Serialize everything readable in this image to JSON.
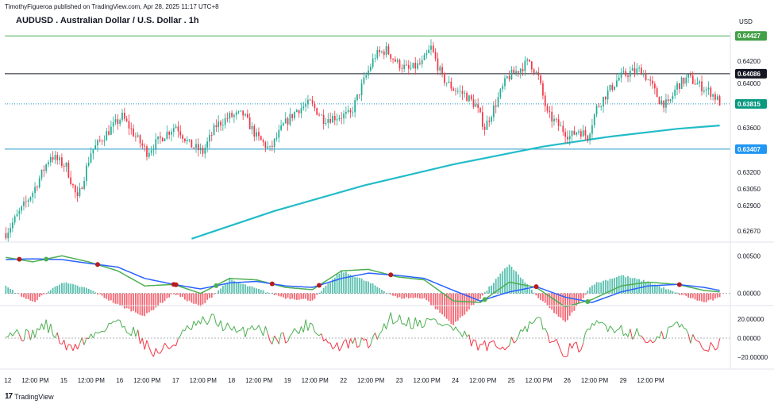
{
  "header": {
    "publish_line": "TimothyFigueroa published on TradingView.com, Apr 28, 2025 11:17 UTC+8",
    "title": "AUDUSD . Australian Dollar / U.S. Dollar . 1h",
    "currency": "USD"
  },
  "footer": {
    "brand": "TradingView",
    "logo_icon": "tradingview-logo-icon"
  },
  "colors": {
    "up": "#22ab94",
    "down": "#f23645",
    "ma": "#22bcc8",
    "line_green": "#4caf50",
    "line_black": "#131722",
    "line_cyan": "#2196c8",
    "badge_green": "#43a047",
    "badge_black": "#131722",
    "badge_teal": "#089981",
    "badge_blue": "#2196f3",
    "macd_green": "#4caf50",
    "macd_red": "#b71c1c",
    "macd_blue": "#2962ff",
    "osc_up": "#4caf50",
    "osc_down": "#f23645"
  },
  "chart_data": [
    {
      "type": "candlestick",
      "title": "AUDUSD . Australian Dollar / U.S. Dollar . 1h",
      "ylim": [
        0.6262,
        0.6445
      ],
      "yticks": [
        "0.64200",
        "0.64000",
        "0.63600",
        "0.63200",
        "0.63050",
        "0.62900",
        "0.62670"
      ],
      "price_lines": [
        {
          "value": 0.64427,
          "label": "0.64427",
          "color": "line_green",
          "badge": "badge_green"
        },
        {
          "value": 0.64086,
          "label": "0.64086",
          "color": "line_black",
          "badge": "badge_black"
        },
        {
          "value": 0.63815,
          "label": "0.63815",
          "color": "line_cyan",
          "badge": "badge_teal",
          "dotted": true
        },
        {
          "value": 0.63407,
          "label": "0.63407",
          "color": "line_cyan",
          "badge": "badge_blue"
        }
      ],
      "close_path": [
        [
          0,
          0.6265
        ],
        [
          12,
          0.6302
        ],
        [
          20,
          0.6335
        ],
        [
          27,
          0.6325
        ],
        [
          32,
          0.6295
        ],
        [
          38,
          0.6338
        ],
        [
          45,
          0.6355
        ],
        [
          52,
          0.637
        ],
        [
          58,
          0.6352
        ],
        [
          63,
          0.6338
        ],
        [
          70,
          0.6352
        ],
        [
          76,
          0.6362
        ],
        [
          82,
          0.6345
        ],
        [
          88,
          0.6338
        ],
        [
          94,
          0.6362
        ],
        [
          100,
          0.637
        ],
        [
          106,
          0.6372
        ],
        [
          112,
          0.6352
        ],
        [
          118,
          0.634
        ],
        [
          124,
          0.6362
        ],
        [
          130,
          0.6376
        ],
        [
          136,
          0.6382
        ],
        [
          142,
          0.6368
        ],
        [
          148,
          0.637
        ],
        [
          154,
          0.6372
        ],
        [
          160,
          0.6402
        ],
        [
          165,
          0.6425
        ],
        [
          170,
          0.643
        ],
        [
          175,
          0.6418
        ],
        [
          180,
          0.6412
        ],
        [
          186,
          0.6418
        ],
        [
          190,
          0.6432
        ],
        [
          195,
          0.6405
        ],
        [
          200,
          0.6395
        ],
        [
          205,
          0.639
        ],
        [
          210,
          0.638
        ],
        [
          214,
          0.636
        ],
        [
          219,
          0.6382
        ],
        [
          224,
          0.6405
        ],
        [
          229,
          0.6412
        ],
        [
          234,
          0.642
        ],
        [
          238,
          0.6405
        ],
        [
          242,
          0.6372
        ],
        [
          247,
          0.6362
        ],
        [
          252,
          0.6352
        ],
        [
          256,
          0.6358
        ],
        [
          260,
          0.6352
        ],
        [
          264,
          0.6378
        ],
        [
          269,
          0.6392
        ],
        [
          274,
          0.6405
        ],
        [
          279,
          0.641
        ],
        [
          284,
          0.6412
        ],
        [
          288,
          0.64
        ],
        [
          292,
          0.6385
        ],
        [
          296,
          0.638
        ],
        [
          300,
          0.6398
        ],
        [
          305,
          0.6405
        ],
        [
          310,
          0.6398
        ],
        [
          315,
          0.6392
        ],
        [
          319,
          0.6383
        ]
      ],
      "candle_count": 320,
      "moving_average": [
        [
          83,
          0.626
        ],
        [
          120,
          0.6285
        ],
        [
          160,
          0.6308
        ],
        [
          200,
          0.6327
        ],
        [
          240,
          0.6343
        ],
        [
          270,
          0.6352
        ],
        [
          300,
          0.6359
        ],
        [
          319,
          0.6362
        ]
      ]
    },
    {
      "type": "line",
      "name_hint": "macd",
      "ylim": [
        -0.0013,
        0.0063
      ],
      "yticks": [
        "0.00500",
        "0.00000"
      ],
      "x": [
        0,
        12,
        25,
        37,
        50,
        62,
        75,
        87,
        100,
        112,
        125,
        137,
        150,
        162,
        175,
        187,
        200,
        212,
        225,
        237,
        250,
        262,
        275,
        287,
        300,
        312,
        319
      ],
      "series": [
        {
          "color": "macd_green",
          "values": [
            0.0048,
            0.0042,
            0.005,
            0.0042,
            0.003,
            0.001,
            0.0012,
            0.0,
            0.002,
            0.0018,
            0.0008,
            0.0005,
            0.003,
            0.0032,
            0.0022,
            0.0018,
            -0.001,
            -0.0012,
            0.0015,
            0.0008,
            -0.0018,
            -0.0008,
            0.001,
            0.0015,
            0.0012,
            0.0004,
            0.0002
          ]
        },
        {
          "color": "macd_blue",
          "values": [
            0.0045,
            0.0046,
            0.0045,
            0.004,
            0.0035,
            0.002,
            0.0012,
            0.0006,
            0.0014,
            0.0016,
            0.001,
            0.0008,
            0.002,
            0.0027,
            0.0024,
            0.002,
            0.0004,
            -0.001,
            0.0002,
            0.0009,
            -0.0005,
            -0.0012,
            0.0002,
            0.001,
            0.0012,
            0.0008,
            0.0004
          ]
        }
      ],
      "histogram_scale": 0.0009
    },
    {
      "type": "line",
      "ylim": [
        -30,
        30
      ],
      "yticks": [
        "20.00000",
        "0.00000",
        "−20.00000"
      ],
      "x_count": 320,
      "bands": [
        [
          0,
          8
        ],
        [
          10,
          2
        ],
        [
          18,
          14
        ],
        [
          28,
          -12
        ],
        [
          40,
          4
        ],
        [
          48,
          18
        ],
        [
          58,
          6
        ],
        [
          66,
          -16
        ],
        [
          74,
          -8
        ],
        [
          82,
          10
        ],
        [
          92,
          20
        ],
        [
          104,
          4
        ],
        [
          112,
          14
        ],
        [
          120,
          -2
        ],
        [
          128,
          4
        ],
        [
          136,
          16
        ],
        [
          146,
          -10
        ],
        [
          154,
          -6
        ],
        [
          164,
          -4
        ],
        [
          172,
          22
        ],
        [
          182,
          16
        ],
        [
          192,
          18
        ],
        [
          200,
          10
        ],
        [
          210,
          -8
        ],
        [
          220,
          -10
        ],
        [
          230,
          4
        ],
        [
          238,
          18
        ],
        [
          248,
          -14
        ],
        [
          256,
          -10
        ],
        [
          264,
          16
        ],
        [
          274,
          10
        ],
        [
          282,
          4
        ],
        [
          290,
          -6
        ],
        [
          300,
          16
        ],
        [
          308,
          -4
        ],
        [
          314,
          -10
        ],
        [
          319,
          -3
        ]
      ]
    }
  ],
  "x_axis": {
    "labels": [
      {
        "text": "12",
        "x": 0
      },
      {
        "text": "12:00 PM",
        "x": 12
      },
      {
        "text": "15",
        "x": 25
      },
      {
        "text": "12:00 PM",
        "x": 37
      },
      {
        "text": "16",
        "x": 50
      },
      {
        "text": "12:00 PM",
        "x": 62
      },
      {
        "text": "17",
        "x": 75
      },
      {
        "text": "12:00 PM",
        "x": 87
      },
      {
        "text": "18",
        "x": 100
      },
      {
        "text": "12:00 PM",
        "x": 112
      },
      {
        "text": "19",
        "x": 125
      },
      {
        "text": "12:00 PM",
        "x": 137
      },
      {
        "text": "22",
        "x": 150
      },
      {
        "text": "12:00 PM",
        "x": 162
      },
      {
        "text": "23",
        "x": 175
      },
      {
        "text": "12:00 PM",
        "x": 187
      },
      {
        "text": "24",
        "x": 200
      },
      {
        "text": "12:00 PM",
        "x": 212
      },
      {
        "text": "25",
        "x": 225
      },
      {
        "text": "12:00 PM",
        "x": 237
      },
      {
        "text": "26",
        "x": 250
      },
      {
        "text": "12:00 PM",
        "x": 262
      },
      {
        "text": "29",
        "x": 275
      },
      {
        "text": "12:00 PM",
        "x": 287
      }
    ]
  }
}
